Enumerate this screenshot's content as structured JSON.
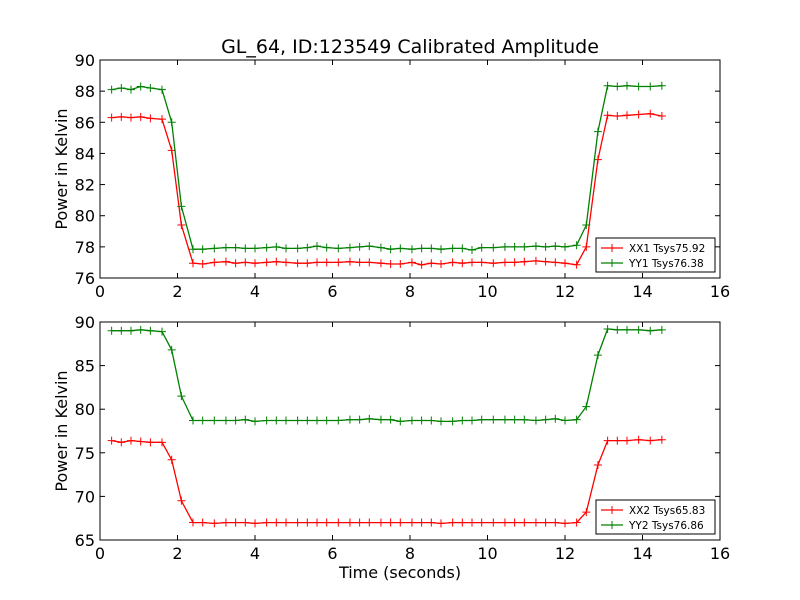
{
  "figure": {
    "title": "GL_64, ID:123549 Calibrated Amplitude"
  },
  "chart_data": [
    {
      "type": "line",
      "title": "GL_64, ID:123549 Calibrated Amplitude",
      "xlabel": "",
      "ylabel": "Power in Kelvin",
      "xlim": [
        0,
        16
      ],
      "ylim": [
        76,
        90
      ],
      "xticks": [
        0,
        2,
        4,
        6,
        8,
        10,
        12,
        14,
        16
      ],
      "yticks": [
        76,
        78,
        80,
        82,
        84,
        86,
        88,
        90
      ],
      "grid": false,
      "legend_position": "lower-right",
      "series": [
        {
          "name": "XX1 Tsys75.92",
          "color": "#ff0000",
          "marker": "plus",
          "x": [
            0.3,
            0.55,
            0.8,
            1.05,
            1.3,
            1.6,
            1.85,
            2.1,
            2.4,
            2.65,
            2.95,
            3.25,
            3.5,
            3.75,
            4.0,
            4.3,
            4.55,
            4.8,
            5.1,
            5.35,
            5.6,
            5.85,
            6.15,
            6.45,
            6.7,
            6.95,
            7.25,
            7.5,
            7.75,
            8.05,
            8.3,
            8.55,
            8.8,
            9.1,
            9.35,
            9.6,
            9.85,
            10.15,
            10.45,
            10.7,
            10.95,
            11.25,
            11.5,
            11.75,
            12.0,
            12.3,
            12.55,
            12.85,
            13.1,
            13.35,
            13.6,
            13.9,
            14.2,
            14.5
          ],
          "y": [
            86.3,
            86.35,
            86.3,
            86.35,
            86.25,
            86.2,
            84.2,
            79.4,
            76.95,
            76.9,
            77.0,
            77.05,
            76.95,
            77.0,
            76.95,
            77.0,
            77.05,
            77.0,
            76.95,
            76.95,
            77.0,
            77.0,
            77.0,
            77.05,
            77.0,
            77.0,
            76.95,
            76.9,
            76.9,
            77.0,
            76.85,
            76.95,
            76.9,
            77.0,
            76.95,
            77.0,
            77.0,
            76.95,
            77.0,
            77.0,
            77.05,
            77.1,
            77.05,
            77.0,
            76.95,
            76.85,
            78.0,
            83.6,
            86.45,
            86.4,
            86.45,
            86.5,
            86.55,
            86.4
          ]
        },
        {
          "name": "YY1 Tsys76.38",
          "color": "#008000",
          "marker": "plus",
          "x": [
            0.3,
            0.55,
            0.8,
            1.05,
            1.3,
            1.6,
            1.85,
            2.1,
            2.4,
            2.65,
            2.95,
            3.25,
            3.5,
            3.75,
            4.0,
            4.3,
            4.55,
            4.8,
            5.1,
            5.35,
            5.6,
            5.85,
            6.15,
            6.45,
            6.7,
            6.95,
            7.25,
            7.5,
            7.75,
            8.05,
            8.3,
            8.55,
            8.8,
            9.1,
            9.35,
            9.6,
            9.85,
            10.15,
            10.45,
            10.7,
            10.95,
            11.25,
            11.5,
            11.75,
            12.0,
            12.3,
            12.55,
            12.85,
            13.1,
            13.35,
            13.6,
            13.9,
            14.2,
            14.5
          ],
          "y": [
            88.1,
            88.2,
            88.1,
            88.3,
            88.2,
            88.1,
            86.0,
            80.6,
            77.85,
            77.85,
            77.9,
            77.95,
            77.95,
            77.9,
            77.9,
            77.95,
            78.0,
            77.9,
            77.9,
            77.95,
            78.05,
            77.95,
            77.9,
            77.95,
            78.0,
            78.05,
            77.95,
            77.85,
            77.9,
            77.85,
            77.9,
            77.9,
            77.85,
            77.9,
            77.9,
            77.8,
            77.95,
            77.95,
            78.0,
            78.0,
            78.0,
            78.05,
            78.0,
            78.05,
            78.0,
            78.1,
            79.4,
            85.4,
            88.35,
            88.3,
            88.35,
            88.3,
            88.3,
            88.35
          ]
        }
      ]
    },
    {
      "type": "line",
      "title": "",
      "xlabel": "Time (seconds)",
      "ylabel": "Power in Kelvin",
      "xlim": [
        0,
        16
      ],
      "ylim": [
        65,
        90
      ],
      "xticks": [
        0,
        2,
        4,
        6,
        8,
        10,
        12,
        14,
        16
      ],
      "yticks": [
        65,
        70,
        75,
        80,
        85,
        90
      ],
      "grid": false,
      "legend_position": "lower-right",
      "series": [
        {
          "name": "XX2 Tsys65.83",
          "color": "#ff0000",
          "marker": "plus",
          "x": [
            0.3,
            0.55,
            0.8,
            1.05,
            1.3,
            1.6,
            1.85,
            2.1,
            2.4,
            2.65,
            2.95,
            3.25,
            3.5,
            3.75,
            4.0,
            4.3,
            4.55,
            4.8,
            5.1,
            5.35,
            5.6,
            5.85,
            6.15,
            6.45,
            6.7,
            6.95,
            7.25,
            7.5,
            7.75,
            8.05,
            8.3,
            8.55,
            8.8,
            9.1,
            9.35,
            9.6,
            9.85,
            10.15,
            10.45,
            10.7,
            10.95,
            11.25,
            11.5,
            11.75,
            12.0,
            12.3,
            12.55,
            12.85,
            13.1,
            13.35,
            13.6,
            13.9,
            14.2,
            14.5
          ],
          "y": [
            76.4,
            76.2,
            76.4,
            76.3,
            76.2,
            76.2,
            74.2,
            69.5,
            67.0,
            67.0,
            66.9,
            67.0,
            67.0,
            67.0,
            66.9,
            67.0,
            67.0,
            67.0,
            67.0,
            67.0,
            67.0,
            67.0,
            67.0,
            67.0,
            67.0,
            67.0,
            67.0,
            67.0,
            67.0,
            67.0,
            67.0,
            67.0,
            66.9,
            67.0,
            67.0,
            67.0,
            67.0,
            67.0,
            67.0,
            67.0,
            67.0,
            67.0,
            67.0,
            67.0,
            66.9,
            67.0,
            68.2,
            73.6,
            76.4,
            76.4,
            76.4,
            76.5,
            76.4,
            76.5
          ]
        },
        {
          "name": "YY2 Tsys76.86",
          "color": "#008000",
          "marker": "plus",
          "x": [
            0.3,
            0.55,
            0.8,
            1.05,
            1.3,
            1.6,
            1.85,
            2.1,
            2.4,
            2.65,
            2.95,
            3.25,
            3.5,
            3.75,
            4.0,
            4.3,
            4.55,
            4.8,
            5.1,
            5.35,
            5.6,
            5.85,
            6.15,
            6.45,
            6.7,
            6.95,
            7.25,
            7.5,
            7.75,
            8.05,
            8.3,
            8.55,
            8.8,
            9.1,
            9.35,
            9.6,
            9.85,
            10.15,
            10.45,
            10.7,
            10.95,
            11.25,
            11.5,
            11.75,
            12.0,
            12.3,
            12.55,
            12.85,
            13.1,
            13.35,
            13.6,
            13.9,
            14.2,
            14.5
          ],
          "y": [
            89.0,
            89.0,
            89.0,
            89.1,
            89.0,
            88.9,
            86.8,
            81.5,
            78.7,
            78.7,
            78.7,
            78.7,
            78.7,
            78.8,
            78.6,
            78.7,
            78.7,
            78.7,
            78.7,
            78.7,
            78.7,
            78.7,
            78.7,
            78.8,
            78.8,
            78.9,
            78.8,
            78.8,
            78.6,
            78.7,
            78.7,
            78.7,
            78.6,
            78.6,
            78.7,
            78.7,
            78.8,
            78.8,
            78.8,
            78.8,
            78.8,
            78.7,
            78.8,
            78.9,
            78.7,
            78.8,
            80.3,
            86.2,
            89.2,
            89.1,
            89.1,
            89.1,
            89.0,
            89.1
          ]
        }
      ]
    }
  ]
}
